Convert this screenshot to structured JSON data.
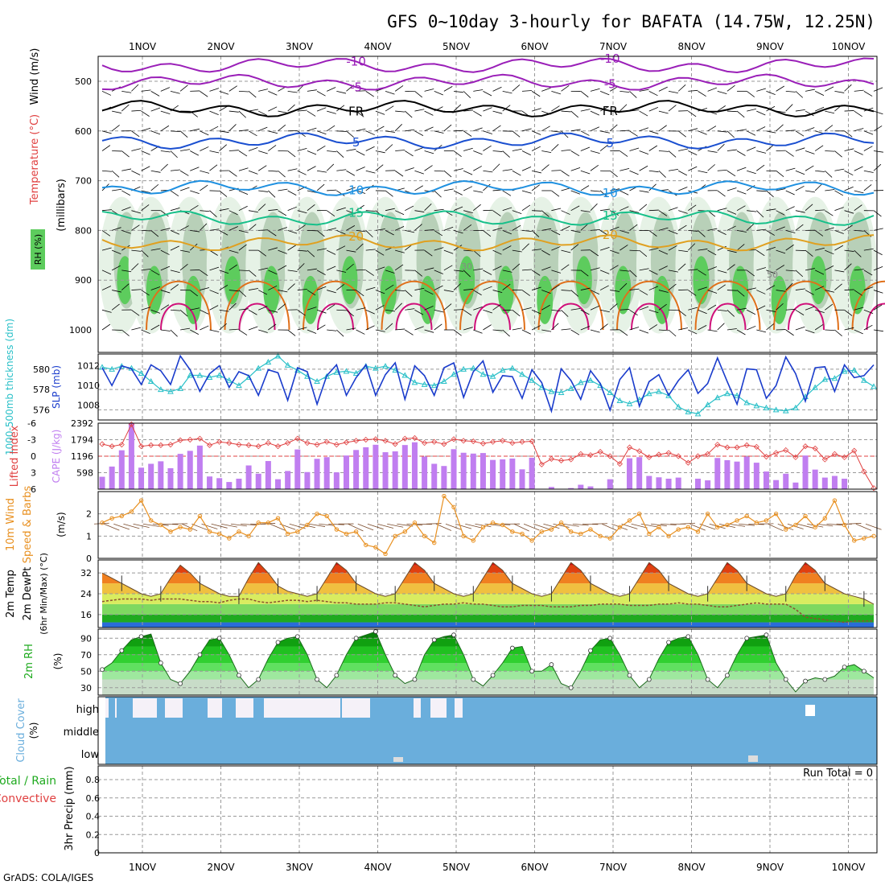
{
  "title": "GFS 0~10day 3-hourly for BAFATA (14.75W, 12.25N)",
  "credit": "GrADS: COLA/IGES",
  "days": [
    "1NOV",
    "2NOV",
    "3NOV",
    "4NOV",
    "5NOV",
    "6NOV",
    "7NOV",
    "8NOV",
    "9NOV",
    "10NOV"
  ],
  "colors": {
    "purple": "#9a1fb8",
    "black": "#000000",
    "blue": "#1a4fd0",
    "lightblue": "#1e90e0",
    "teal": "#17c08a",
    "orange": "#e0a020",
    "darkorange": "#e0701a",
    "magenta": "#d0107a",
    "rh_light": "#e6f2e6",
    "rh_mid": "#b8d0b8",
    "rh_green": "#5dcc5d",
    "rh_bright": "#22e622",
    "slp": "#1a3ccc",
    "thick": "#2ac0c8",
    "li": "#e04040",
    "cape": "#c07ef0",
    "wind10": "#e89020",
    "dew": "#8a5030",
    "rh2m": "#1faa1f",
    "cloud": "#6aaedc",
    "cloud_clear": "#f5f1f8"
  },
  "chart_data": [
    {
      "panel": "upper-air",
      "type": "contour",
      "ylabels": [
        "Wind (m/s)",
        "Temperature (°C)",
        "(millibars)",
        "RH (%)"
      ],
      "ylim": [
        1000,
        450
      ],
      "y_ticks": [
        500,
        600,
        700,
        800,
        900,
        1000
      ],
      "contours": [
        {
          "name": "-10",
          "pressure": 468,
          "color_key": "purple"
        },
        {
          "name": "-5",
          "pressure": 502,
          "color_key": "purple"
        },
        {
          "name": "FR",
          "pressure": 555,
          "color_key": "black"
        },
        {
          "name": "5",
          "pressure": 620,
          "color_key": "blue"
        },
        {
          "name": "10",
          "pressure": 715,
          "color_key": "lightblue"
        },
        {
          "name": "15",
          "pressure": 775,
          "color_key": "teal"
        },
        {
          "name": "20",
          "pressure": 825,
          "color_key": "orange"
        }
      ],
      "rh_labels": [
        "30",
        "50",
        "10"
      ]
    },
    {
      "panel": "thickness-slp",
      "type": "line",
      "ylabels": [
        "1000-500mb thickness (dm)",
        "SLP (mb)"
      ],
      "left_ticks": [
        576,
        578,
        580
      ],
      "right_ticks": [
        1008,
        1010,
        1012
      ],
      "left_ylim": [
        575,
        581.5
      ],
      "right_ylim": [
        1006.5,
        1013.2
      ],
      "series": [
        {
          "name": "SLP (mb)",
          "values": [
            1011.8,
            1010.0,
            1012.0,
            1011.7,
            1010.1,
            1012.1,
            1011.5,
            1010.1,
            1013.0,
            1011.6,
            1009.4,
            1011.2,
            1012.0,
            1009.8,
            1011.4,
            1011.0,
            1009.0,
            1011.6,
            1011.3,
            1008.5,
            1011.8,
            1011.4,
            1008.1,
            1011.0,
            1012.1,
            1009.0,
            1010.8,
            1012.1,
            1009.0,
            1011.1,
            1012.3,
            1008.6,
            1012.0,
            1011.0,
            1009.0,
            1011.8,
            1012.3,
            1008.8,
            1011.4,
            1012.5,
            1009.3,
            1011.0,
            1010.9,
            1008.7,
            1011.6,
            1010.3,
            1007.4,
            1011.7,
            1010.5,
            1008.6,
            1011.5,
            1010.2,
            1007.5,
            1010.6,
            1011.8,
            1007.9,
            1010.4,
            1011.1,
            1009.0,
            1010.5,
            1011.6,
            1009.2,
            1010.2,
            1012.8,
            1010.4,
            1008.1,
            1011.7,
            1011.6,
            1008.7,
            1010.0,
            1012.9,
            1011.2,
            1008.4,
            1011.8,
            1011.9,
            1009.4,
            1012.1,
            1010.8,
            1011.0,
            1012.1
          ]
        },
        {
          "name": "thickness (dm)",
          "values": [
            580.2,
            580.0,
            580.3,
            580.1,
            579.6,
            578.8,
            578.0,
            577.8,
            578.1,
            579.4,
            579.4,
            579.2,
            579.4,
            578.9,
            578.4,
            579.2,
            580.1,
            580.7,
            581.3,
            580.4,
            579.9,
            579.3,
            578.8,
            579.3,
            579.7,
            579.8,
            579.6,
            580.3,
            580.1,
            580.3,
            579.9,
            579.4,
            578.7,
            578.5,
            578.4,
            578.8,
            579.5,
            580.0,
            580.1,
            579.5,
            579.3,
            579.9,
            580.1,
            579.5,
            578.9,
            578.2,
            577.8,
            577.7,
            578.1,
            578.7,
            578.9,
            578.4,
            577.7,
            576.9,
            576.6,
            577.0,
            577.6,
            577.8,
            577.4,
            576.3,
            575.8,
            575.6,
            576.5,
            577.2,
            577.6,
            577.4,
            576.7,
            576.4,
            576.2,
            576.0,
            575.9,
            576.2,
            577.3,
            578.2,
            579.0,
            579.1,
            579.8,
            579.9,
            578.9,
            578.3
          ]
        }
      ]
    },
    {
      "panel": "instability",
      "type": "bar",
      "ylabels": [
        "Lifted Index",
        "CAPE (J/kg)"
      ],
      "left_ticks": [
        "-6",
        "-3",
        "0",
        "3",
        "6"
      ],
      "right_ticks": [
        598,
        1196,
        1794,
        2392
      ],
      "cape_ylim": [
        0,
        2392
      ],
      "li_ylim": [
        -6,
        6
      ],
      "series": [
        {
          "name": "CAPE (J/kg)",
          "values": [
            450,
            820,
            1410,
            2390,
            780,
            920,
            1010,
            760,
            1280,
            1390,
            1580,
            460,
            400,
            260,
            380,
            860,
            560,
            1020,
            360,
            660,
            1440,
            620,
            1100,
            1160,
            610,
            1220,
            1420,
            1520,
            1610,
            1340,
            1370,
            1600,
            1700,
            1180,
            920,
            840,
            1450,
            1320,
            1290,
            1310,
            1060,
            1080,
            1110,
            720,
            1140,
            0,
            80,
            0,
            40,
            160,
            100,
            0,
            360,
            0,
            1120,
            1160,
            480,
            430,
            380,
            420,
            0,
            380,
            320,
            1130,
            1050,
            1000,
            1180,
            960,
            640,
            330,
            560,
            240,
            1220,
            710,
            420,
            480,
            380,
            0,
            0,
            0
          ]
        },
        {
          "name": "Lifted Index",
          "values": [
            -2.2,
            -1.8,
            -2.1,
            -5.8,
            -1.8,
            -2.0,
            -2.0,
            -2.1,
            -2.9,
            -3.0,
            -3.2,
            -2.0,
            -2.6,
            -2.4,
            -2.1,
            -2.0,
            -1.8,
            -2.4,
            -1.8,
            -2.4,
            -3.2,
            -2.4,
            -2.1,
            -2.6,
            -2.1,
            -2.5,
            -2.8,
            -3.0,
            -3.1,
            -2.8,
            -2.2,
            -3.2,
            -3.3,
            -2.4,
            -2.6,
            -2.2,
            -3.1,
            -2.8,
            -2.7,
            -2.3,
            -2.6,
            -2.8,
            -2.4,
            -2.6,
            -2.7,
            1.5,
            0.5,
            0.8,
            0.6,
            -0.4,
            -0.2,
            -0.8,
            0.0,
            1.4,
            -1.6,
            -0.9,
            0.2,
            -0.3,
            -0.6,
            0.0,
            1.2,
            0.0,
            -0.4,
            -2.1,
            -1.6,
            -1.6,
            -2.0,
            -1.7,
            0.1,
            -0.6,
            -1.1,
            0.2,
            -1.8,
            -1.4,
            0.6,
            -0.4,
            0.2,
            -1.0,
            2.8,
            5.8
          ]
        }
      ]
    },
    {
      "panel": "wind10m",
      "type": "line",
      "ylabels": [
        "10m Wind",
        "Speed & Barbs",
        "(m/s)"
      ],
      "y_ticks": [
        0,
        1,
        2
      ],
      "ylim": [
        0,
        3.0
      ],
      "series": [
        {
          "name": "10m Wind Speed (m/s)",
          "values": [
            1.6,
            1.8,
            1.9,
            2.1,
            2.6,
            1.7,
            1.5,
            1.2,
            1.4,
            1.3,
            1.9,
            1.2,
            1.1,
            0.9,
            1.2,
            1.0,
            1.6,
            1.6,
            1.8,
            1.1,
            1.2,
            1.5,
            2.0,
            1.9,
            1.3,
            1.1,
            1.2,
            0.6,
            0.5,
            0.2,
            1.0,
            1.2,
            1.6,
            1.0,
            0.7,
            2.8,
            2.3,
            1.0,
            0.8,
            1.4,
            1.6,
            1.5,
            1.2,
            1.1,
            0.8,
            1.2,
            1.3,
            1.6,
            1.2,
            1.1,
            1.3,
            1.0,
            0.9,
            1.4,
            1.7,
            2.0,
            1.1,
            1.4,
            1.0,
            1.3,
            1.4,
            1.2,
            2.0,
            1.4,
            1.5,
            1.7,
            1.9,
            1.6,
            1.7,
            2.0,
            1.3,
            1.5,
            1.9,
            1.4,
            1.8,
            2.6,
            1.5,
            0.8,
            0.9,
            1.0
          ]
        }
      ]
    },
    {
      "panel": "temperature2m",
      "type": "area",
      "ylabels": [
        "2m Temp",
        "2m DewPt",
        "(6hr Min/Max) (°C)"
      ],
      "y_ticks": [
        16,
        24,
        32
      ],
      "ylim": [
        11,
        37
      ],
      "series": [
        {
          "name": "2m Temp (°C)",
          "values": [
            32,
            30,
            28,
            26,
            24,
            23,
            24,
            30,
            35,
            32,
            28,
            26,
            24,
            23,
            23,
            30,
            36,
            32,
            27,
            25,
            24,
            23,
            24,
            30,
            36,
            33,
            28,
            26,
            24,
            23,
            24,
            30,
            36,
            33,
            28,
            26,
            24,
            23,
            24,
            30,
            36,
            33,
            28,
            26,
            24,
            23,
            24,
            30,
            36,
            33,
            28,
            26,
            24,
            23,
            24,
            30,
            36,
            33,
            28,
            26,
            24,
            23,
            24,
            30,
            36,
            33,
            28,
            26,
            24,
            23,
            24,
            31,
            36,
            33,
            28,
            26,
            24,
            23,
            22,
            20
          ]
        },
        {
          "name": "2m DewPt (°C)",
          "values": [
            21,
            21.5,
            22,
            22,
            22,
            21.5,
            22,
            22,
            22,
            21.5,
            21,
            21,
            20.5,
            21.5,
            22,
            22,
            21,
            20.5,
            21,
            21.5,
            21.5,
            21,
            21.5,
            21,
            20.5,
            20.5,
            20,
            20,
            20,
            20.5,
            20.5,
            20,
            19.5,
            19,
            19.5,
            20,
            20,
            20.5,
            20,
            20,
            19.5,
            19,
            19,
            19.5,
            19.5,
            19.5,
            19,
            19,
            19,
            19.5,
            19.5,
            20,
            20,
            20,
            19.5,
            19.5,
            19.5,
            20,
            20,
            20.5,
            20,
            20,
            19.5,
            19,
            19,
            19.5,
            20,
            20.5,
            20,
            20,
            20,
            18,
            15,
            14.5,
            14,
            13.5,
            13,
            13.5,
            13.5,
            13.5
          ]
        }
      ]
    },
    {
      "panel": "rh2m",
      "type": "area",
      "ylabels": [
        "2m RH",
        "(%)"
      ],
      "y_ticks": [
        30,
        50,
        70,
        90
      ],
      "ylim": [
        21,
        101
      ],
      "series": [
        {
          "name": "2m RH (%)",
          "values": [
            52,
            60,
            75,
            88,
            92,
            95,
            60,
            40,
            35,
            50,
            70,
            88,
            90,
            70,
            45,
            30,
            40,
            65,
            85,
            90,
            92,
            70,
            40,
            30,
            45,
            70,
            90,
            94,
            98,
            70,
            45,
            35,
            40,
            70,
            88,
            92,
            94,
            70,
            40,
            32,
            45,
            60,
            78,
            80,
            50,
            50,
            58,
            35,
            30,
            50,
            75,
            88,
            90,
            70,
            45,
            30,
            40,
            65,
            85,
            90,
            92,
            70,
            40,
            30,
            45,
            70,
            90,
            92,
            94,
            60,
            40,
            25,
            38,
            42,
            40,
            44,
            55,
            58,
            50,
            42
          ]
        }
      ]
    },
    {
      "panel": "cloud-cover",
      "type": "heatmap",
      "ylabels": [
        "Cloud Cover",
        "(%)"
      ],
      "rows": [
        "high",
        "middle",
        "low"
      ]
    },
    {
      "panel": "precip",
      "type": "bar",
      "ylabels": [
        "Total / Rain",
        "Convective",
        "3hr Precip (mm)"
      ],
      "y_ticks": [
        "0",
        "0.2",
        "0.4",
        "0.6",
        "0.8"
      ],
      "ylim": [
        0,
        0.95
      ],
      "run_total_label": "Run Total = 0",
      "values": []
    }
  ]
}
